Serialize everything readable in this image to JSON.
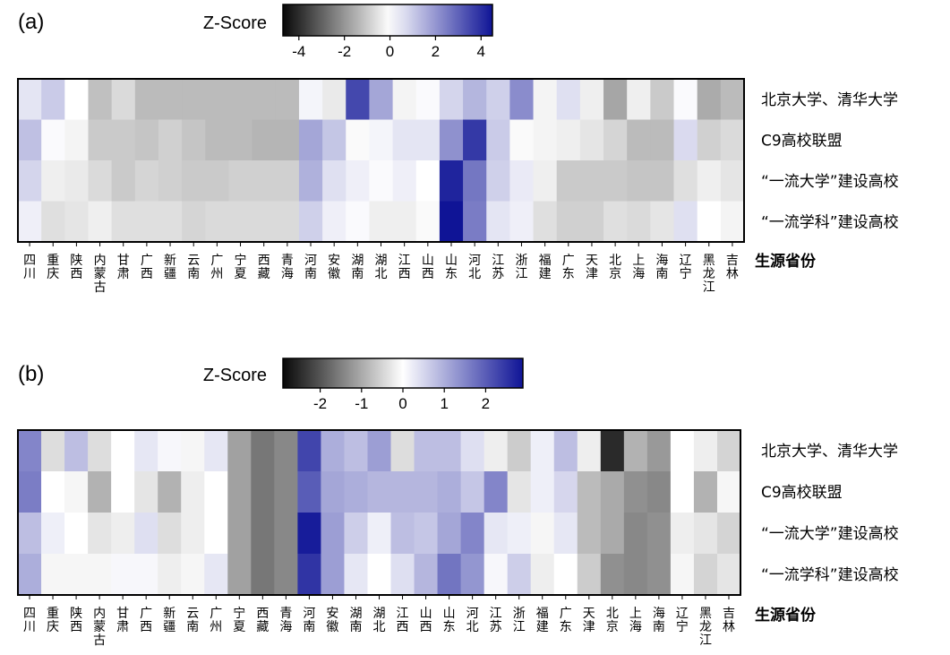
{
  "chart_data": [
    {
      "type": "heatmap",
      "panel_label": "(a)",
      "colorbar": {
        "title": "Z-Score",
        "range": [
          -4.7,
          4.5
        ],
        "ticks": [
          -4,
          -2,
          0,
          2,
          4
        ]
      },
      "row_labels": [
        "北京大学、清华大学",
        "C9高校联盟",
        "“一流大学”建设高校",
        "“一流学科”建设高校"
      ],
      "col_labels": [
        "四川",
        "重庆",
        "陕西",
        "内蒙古",
        "甘肃",
        "广西",
        "新疆",
        "云南",
        "广州",
        "宁夏",
        "西藏",
        "青海",
        "河南",
        "安徽",
        "湖南",
        "湖北",
        "江西",
        "山西",
        "山东",
        "河北",
        "江苏",
        "浙江",
        "福建",
        "广东",
        "天津",
        "北京",
        "上海",
        "海南",
        "辽宁",
        "黑龙江",
        "吉林"
      ],
      "xlabel": "生源省份",
      "values": [
        [
          0.5,
          1.0,
          0.0,
          -1.2,
          -0.7,
          -1.3,
          -1.3,
          -1.3,
          -1.3,
          -1.3,
          -1.3,
          -1.3,
          0.2,
          -0.4,
          3.5,
          1.7,
          -0.2,
          0.1,
          0.8,
          1.4,
          0.9,
          2.2,
          -0.2,
          0.6,
          -0.3,
          -1.7,
          -0.3,
          -1.0,
          0.1,
          -1.6,
          -1.3
        ],
        [
          1.2,
          0.1,
          -0.2,
          -1.0,
          -1.0,
          -1.1,
          -0.9,
          -1.1,
          -1.3,
          -1.3,
          -1.4,
          -1.4,
          1.7,
          1.1,
          -0.1,
          0.2,
          0.5,
          0.5,
          2.1,
          3.8,
          1.0,
          -0.1,
          -0.2,
          -0.3,
          -0.5,
          -0.8,
          -1.3,
          -1.3,
          0.7,
          -0.9,
          -0.7
        ],
        [
          0.8,
          -0.3,
          -0.4,
          -0.7,
          -1.0,
          -0.8,
          -0.9,
          -1.0,
          -1.0,
          -0.9,
          -0.9,
          -0.9,
          1.5,
          0.6,
          0.3,
          0.1,
          0.3,
          0.0,
          4.2,
          2.6,
          0.9,
          0.4,
          -0.3,
          -1.0,
          -1.0,
          -1.0,
          -1.1,
          -1.1,
          -0.6,
          -0.3,
          -0.5
        ],
        [
          0.3,
          -0.6,
          -0.5,
          -0.3,
          -0.6,
          -0.6,
          -0.6,
          -0.8,
          -0.7,
          -0.7,
          -0.7,
          -0.7,
          0.9,
          0.3,
          0.1,
          -0.3,
          -0.3,
          -0.1,
          4.6,
          2.5,
          0.5,
          0.3,
          -0.6,
          -0.9,
          -0.9,
          -0.6,
          -0.7,
          -0.5,
          0.6,
          0.0,
          -0.2
        ]
      ]
    },
    {
      "type": "heatmap",
      "panel_label": "(b)",
      "colorbar": {
        "title": "Z-Score",
        "range": [
          -2.9,
          2.9
        ],
        "ticks": [
          -2,
          -1,
          0,
          1,
          2
        ]
      },
      "row_labels": [
        "北京大学、清华大学",
        "C9高校联盟",
        "“一流大学”建设高校",
        "“一流学科”建设高校"
      ],
      "col_labels": [
        "四川",
        "重庆",
        "陕西",
        "内蒙古",
        "甘肃",
        "广西",
        "新疆",
        "云南",
        "广州",
        "宁夏",
        "西藏",
        "青海",
        "河南",
        "安徽",
        "湖南",
        "湖北",
        "江西",
        "山西",
        "山东",
        "河北",
        "江苏",
        "浙江",
        "福建",
        "广东",
        "天津",
        "北京",
        "上海",
        "海南",
        "辽宁",
        "黑龙江",
        "吉林"
      ],
      "xlabel": "生源省份",
      "values": [
        [
          1.5,
          -0.4,
          0.8,
          -0.4,
          0.0,
          0.3,
          0.1,
          -0.1,
          0.3,
          -1.1,
          -1.6,
          -1.4,
          2.3,
          1.0,
          0.8,
          1.2,
          -0.4,
          0.8,
          0.8,
          0.4,
          -0.2,
          -0.6,
          0.2,
          0.8,
          -0.2,
          -2.5,
          -0.9,
          -1.2,
          0.0,
          -0.2,
          -0.5
        ],
        [
          1.6,
          0.0,
          -0.1,
          -0.9,
          0.0,
          -0.3,
          -0.9,
          -0.2,
          0.0,
          -1.1,
          -1.6,
          -1.4,
          2.0,
          1.1,
          1.0,
          0.9,
          0.9,
          0.9,
          1.0,
          0.7,
          1.5,
          -0.3,
          0.2,
          0.5,
          -0.8,
          -1.0,
          -1.3,
          -1.4,
          0.0,
          -0.9,
          -0.1
        ],
        [
          0.8,
          0.2,
          0.0,
          -0.3,
          -0.2,
          0.4,
          -0.4,
          -0.2,
          0.0,
          -1.1,
          -1.6,
          -1.4,
          2.8,
          1.2,
          0.6,
          0.2,
          0.8,
          0.7,
          1.1,
          1.5,
          0.3,
          0.2,
          -0.1,
          0.3,
          -0.8,
          -1.0,
          -1.4,
          -1.3,
          -0.2,
          -0.3,
          -0.5
        ],
        [
          1.0,
          -0.1,
          -0.1,
          -0.1,
          0.1,
          0.1,
          -0.2,
          -0.1,
          0.3,
          -1.1,
          -1.6,
          -1.4,
          2.5,
          1.2,
          0.3,
          0.0,
          0.4,
          0.9,
          1.7,
          1.3,
          0.1,
          0.6,
          -0.2,
          0.0,
          -0.6,
          -1.3,
          -1.4,
          -1.3,
          -0.1,
          -0.5,
          -0.3
        ]
      ]
    }
  ]
}
